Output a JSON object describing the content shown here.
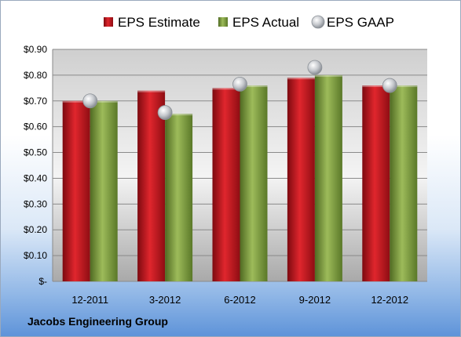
{
  "chart_data": {
    "type": "bar",
    "categories": [
      "12-2011",
      "3-2012",
      "6-2012",
      "9-2012",
      "12-2012"
    ],
    "series": [
      {
        "name": "EPS Estimate",
        "kind": "bar",
        "color": "#c0131b",
        "values": [
          0.7,
          0.74,
          0.75,
          0.79,
          0.76
        ]
      },
      {
        "name": "EPS Actual",
        "kind": "bar",
        "color": "#7a9b3a",
        "values": [
          0.7,
          0.65,
          0.76,
          0.8,
          0.76
        ]
      },
      {
        "name": "EPS GAAP",
        "kind": "marker",
        "color": "#b8bcc2",
        "values": [
          0.7,
          0.655,
          0.765,
          0.83,
          0.76
        ]
      }
    ],
    "yticks": [
      "$-",
      "$0.10",
      "$0.20",
      "$0.30",
      "$0.40",
      "$0.50",
      "$0.60",
      "$0.70",
      "$0.80",
      "$0.90"
    ],
    "ylim": [
      0,
      0.9
    ],
    "grid": true,
    "legend_position": "top"
  },
  "footer": {
    "company": "Jacobs Engineering Group"
  }
}
